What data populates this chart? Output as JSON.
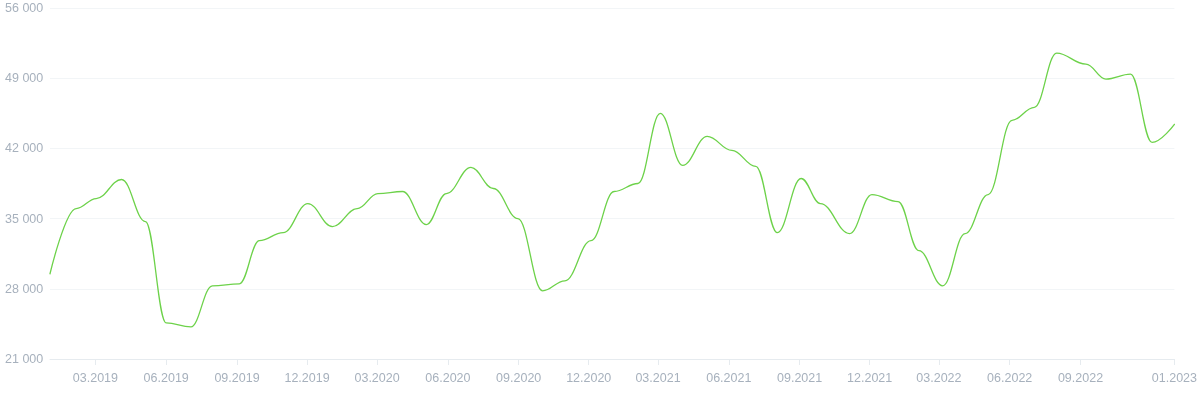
{
  "chart_data": {
    "type": "line",
    "x": [
      "2019-01-01",
      "2019-02-04",
      "2019-03-02",
      "2019-04-04",
      "2019-05-05",
      "2019-06-01",
      "2019-07-03",
      "2019-07-31",
      "2019-09-04",
      "2019-09-30",
      "2019-10-31",
      "2019-12-02",
      "2020-01-03",
      "2020-02-04",
      "2020-03-02",
      "2020-04-03",
      "2020-05-04",
      "2020-05-30",
      "2020-07-01",
      "2020-07-30",
      "2020-08-31",
      "2020-10-02",
      "2020-10-31",
      "2020-12-04",
      "2021-01-03",
      "2021-02-03",
      "2021-03-04",
      "2021-04-02",
      "2021-05-04",
      "2021-06-05",
      "2021-07-06",
      "2021-08-03",
      "2021-09-03",
      "2021-09-28",
      "2021-11-05",
      "2021-12-04",
      "2022-01-07",
      "2022-02-03",
      "2022-03-06",
      "2022-04-04",
      "2022-05-04",
      "2022-06-04",
      "2022-07-03",
      "2022-08-01",
      "2022-09-08",
      "2022-10-04",
      "2022-11-05",
      "2022-12-03",
      "2023-01-01"
    ],
    "series": [
      {
        "color": "#6dd24a",
        "values": [
          29500,
          36000,
          37000,
          38900,
          34700,
          24600,
          24200,
          28300,
          28500,
          32800,
          33600,
          36500,
          34200,
          36000,
          37500,
          37700,
          34400,
          37500,
          40100,
          38000,
          35000,
          27800,
          28800,
          32800,
          37700,
          38500,
          45500,
          40300,
          43200,
          41800,
          40200,
          33600,
          39000,
          36500,
          33500,
          37400,
          36700,
          31800,
          28300,
          33500,
          37400,
          44800,
          46100,
          51500,
          50400,
          48900,
          49400,
          42600,
          44400
        ]
      }
    ],
    "xlim": [
      "2019-01-01",
      "2023-01-01"
    ],
    "xticks": [
      {
        "value": "2019-03-01",
        "label": "03.2019"
      },
      {
        "value": "2019-06-01",
        "label": "06.2019"
      },
      {
        "value": "2019-09-01",
        "label": "09.2019"
      },
      {
        "value": "2019-12-01",
        "label": "12.2019"
      },
      {
        "value": "2020-03-01",
        "label": "03.2020"
      },
      {
        "value": "2020-06-01",
        "label": "06.2020"
      },
      {
        "value": "2020-09-01",
        "label": "09.2020"
      },
      {
        "value": "2020-12-01",
        "label": "12.2020"
      },
      {
        "value": "2021-03-01",
        "label": "03.2021"
      },
      {
        "value": "2021-06-01",
        "label": "06.2021"
      },
      {
        "value": "2021-09-01",
        "label": "09.2021"
      },
      {
        "value": "2021-12-01",
        "label": "12.2021"
      },
      {
        "value": "2022-03-01",
        "label": "03.2022"
      },
      {
        "value": "2022-06-01",
        "label": "06.2022"
      },
      {
        "value": "2022-09-01",
        "label": "09.2022"
      },
      {
        "value": "2023-01-01",
        "label": "01.2023"
      }
    ],
    "ylim": [
      21000,
      56000
    ],
    "yticks": [
      {
        "value": 21000,
        "label": "21 000"
      },
      {
        "value": 28000,
        "label": "28 000"
      },
      {
        "value": 35000,
        "label": "35 000"
      },
      {
        "value": 42000,
        "label": "42 000"
      },
      {
        "value": 49000,
        "label": "49 000"
      },
      {
        "value": 56000,
        "label": "56 000"
      }
    ],
    "grid": "y",
    "marker": "none",
    "line_style": "solid"
  }
}
